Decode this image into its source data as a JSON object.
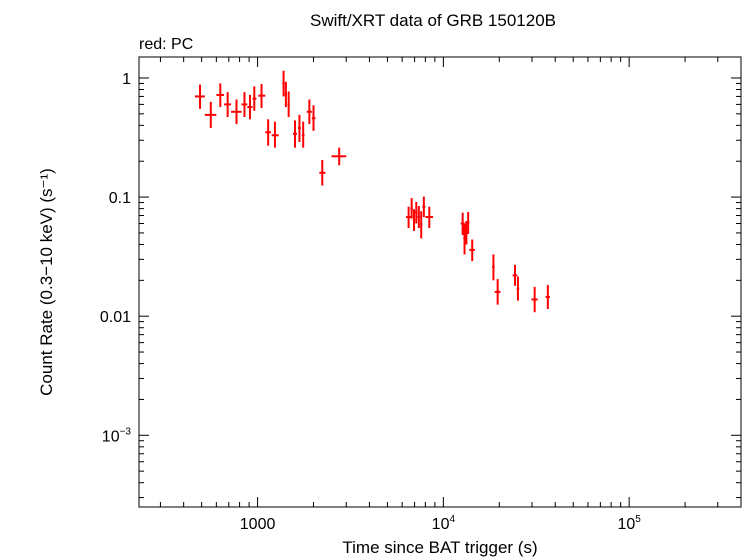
{
  "chart_data": {
    "type": "scatter",
    "title": "Swift/XRT data of GRB 150120B",
    "subtitle": "red: PC",
    "xlabel": "Time since BAT trigger (s)",
    "ylabel": "Count Rate (0.3−10 keV) (s⁻¹)",
    "xscale": "log",
    "yscale": "log",
    "xlim": [
      230,
      400000
    ],
    "ylim": [
      0.00025,
      1.5
    ],
    "x_ticks": [
      {
        "value": 1000,
        "label": "1000"
      },
      {
        "value": 10000,
        "label": "10",
        "sup": "4"
      },
      {
        "value": 100000,
        "label": "10",
        "sup": "5"
      }
    ],
    "y_ticks": [
      {
        "value": 1,
        "label": "1"
      },
      {
        "value": 0.1,
        "label": "0.1"
      },
      {
        "value": 0.01,
        "label": "0.01"
      },
      {
        "value": 0.001,
        "label": "10",
        "sup": "−3"
      }
    ],
    "grid": false,
    "series": [
      {
        "name": "PC",
        "color": "#ff0000",
        "points": [
          {
            "x": 490,
            "y": 0.7,
            "xlo": 460,
            "xhi": 520,
            "ylo": 0.55,
            "yhi": 0.88
          },
          {
            "x": 560,
            "y": 0.49,
            "xlo": 520,
            "xhi": 600,
            "ylo": 0.38,
            "yhi": 0.63
          },
          {
            "x": 630,
            "y": 0.72,
            "xlo": 600,
            "xhi": 660,
            "ylo": 0.57,
            "yhi": 0.9
          },
          {
            "x": 690,
            "y": 0.6,
            "xlo": 660,
            "xhi": 720,
            "ylo": 0.47,
            "yhi": 0.76
          },
          {
            "x": 770,
            "y": 0.52,
            "xlo": 720,
            "xhi": 820,
            "ylo": 0.41,
            "yhi": 0.66
          },
          {
            "x": 850,
            "y": 0.6,
            "xlo": 820,
            "xhi": 880,
            "ylo": 0.47,
            "yhi": 0.76
          },
          {
            "x": 910,
            "y": 0.57,
            "xlo": 880,
            "xhi": 940,
            "ylo": 0.45,
            "yhi": 0.72
          },
          {
            "x": 960,
            "y": 0.67,
            "xlo": 940,
            "xhi": 985,
            "ylo": 0.53,
            "yhi": 0.85
          },
          {
            "x": 1050,
            "y": 0.71,
            "xlo": 1010,
            "xhi": 1100,
            "ylo": 0.56,
            "yhi": 0.89
          },
          {
            "x": 1140,
            "y": 0.35,
            "xlo": 1100,
            "xhi": 1180,
            "ylo": 0.27,
            "yhi": 0.45
          },
          {
            "x": 1240,
            "y": 0.33,
            "xlo": 1190,
            "xhi": 1300,
            "ylo": 0.26,
            "yhi": 0.43
          },
          {
            "x": 1380,
            "y": 0.9,
            "xlo": 1360,
            "xhi": 1400,
            "ylo": 0.7,
            "yhi": 1.15
          },
          {
            "x": 1420,
            "y": 0.73,
            "xlo": 1400,
            "xhi": 1440,
            "ylo": 0.57,
            "yhi": 0.93
          },
          {
            "x": 1470,
            "y": 0.6,
            "xlo": 1450,
            "xhi": 1490,
            "ylo": 0.47,
            "yhi": 0.77
          },
          {
            "x": 1590,
            "y": 0.34,
            "xlo": 1550,
            "xhi": 1630,
            "ylo": 0.26,
            "yhi": 0.44
          },
          {
            "x": 1680,
            "y": 0.38,
            "xlo": 1650,
            "xhi": 1710,
            "ylo": 0.29,
            "yhi": 0.49
          },
          {
            "x": 1760,
            "y": 0.33,
            "xlo": 1730,
            "xhi": 1790,
            "ylo": 0.26,
            "yhi": 0.43
          },
          {
            "x": 1900,
            "y": 0.52,
            "xlo": 1840,
            "xhi": 1960,
            "ylo": 0.41,
            "yhi": 0.66
          },
          {
            "x": 2000,
            "y": 0.46,
            "xlo": 1960,
            "xhi": 2050,
            "ylo": 0.36,
            "yhi": 0.59
          },
          {
            "x": 2230,
            "y": 0.16,
            "xlo": 2150,
            "xhi": 2320,
            "ylo": 0.125,
            "yhi": 0.205
          },
          {
            "x": 2750,
            "y": 0.22,
            "xlo": 2500,
            "xhi": 3000,
            "ylo": 0.185,
            "yhi": 0.26
          },
          {
            "x": 6500,
            "y": 0.068,
            "xlo": 6300,
            "xhi": 6700,
            "ylo": 0.055,
            "yhi": 0.083
          },
          {
            "x": 6750,
            "y": 0.08,
            "xlo": 6650,
            "xhi": 6850,
            "ylo": 0.066,
            "yhi": 0.098
          },
          {
            "x": 6950,
            "y": 0.064,
            "xlo": 6850,
            "xhi": 7050,
            "ylo": 0.052,
            "yhi": 0.079
          },
          {
            "x": 7150,
            "y": 0.074,
            "xlo": 7050,
            "xhi": 7250,
            "ylo": 0.06,
            "yhi": 0.091
          },
          {
            "x": 7380,
            "y": 0.068,
            "xlo": 7250,
            "xhi": 7500,
            "ylo": 0.055,
            "yhi": 0.084
          },
          {
            "x": 7600,
            "y": 0.059,
            "xlo": 7500,
            "xhi": 7700,
            "ylo": 0.045,
            "yhi": 0.076
          },
          {
            "x": 7850,
            "y": 0.083,
            "xlo": 7700,
            "xhi": 8000,
            "ylo": 0.068,
            "yhi": 0.101
          },
          {
            "x": 8400,
            "y": 0.068,
            "xlo": 8000,
            "xhi": 8800,
            "ylo": 0.055,
            "yhi": 0.083
          },
          {
            "x": 12700,
            "y": 0.06,
            "xlo": 12400,
            "xhi": 13000,
            "ylo": 0.048,
            "yhi": 0.074
          },
          {
            "x": 13000,
            "y": 0.045,
            "xlo": 12800,
            "xhi": 13200,
            "ylo": 0.033,
            "yhi": 0.06
          },
          {
            "x": 13300,
            "y": 0.05,
            "xlo": 13100,
            "xhi": 13500,
            "ylo": 0.04,
            "yhi": 0.063
          },
          {
            "x": 13600,
            "y": 0.061,
            "xlo": 13400,
            "xhi": 13800,
            "ylo": 0.049,
            "yhi": 0.075
          },
          {
            "x": 14300,
            "y": 0.036,
            "xlo": 13800,
            "xhi": 14800,
            "ylo": 0.029,
            "yhi": 0.044
          },
          {
            "x": 18600,
            "y": 0.026,
            "xlo": 18300,
            "xhi": 18900,
            "ylo": 0.02,
            "yhi": 0.033
          },
          {
            "x": 19600,
            "y": 0.016,
            "xlo": 18900,
            "xhi": 20300,
            "ylo": 0.0125,
            "yhi": 0.0205
          },
          {
            "x": 24300,
            "y": 0.022,
            "xlo": 23600,
            "xhi": 25000,
            "ylo": 0.018,
            "yhi": 0.027
          },
          {
            "x": 25200,
            "y": 0.017,
            "xlo": 24800,
            "xhi": 25600,
            "ylo": 0.0135,
            "yhi": 0.0215
          },
          {
            "x": 31000,
            "y": 0.0138,
            "xlo": 29800,
            "xhi": 32200,
            "ylo": 0.0108,
            "yhi": 0.0176
          },
          {
            "x": 36500,
            "y": 0.0145,
            "xlo": 35500,
            "xhi": 37500,
            "ylo": 0.0115,
            "yhi": 0.0183
          }
        ]
      }
    ]
  }
}
